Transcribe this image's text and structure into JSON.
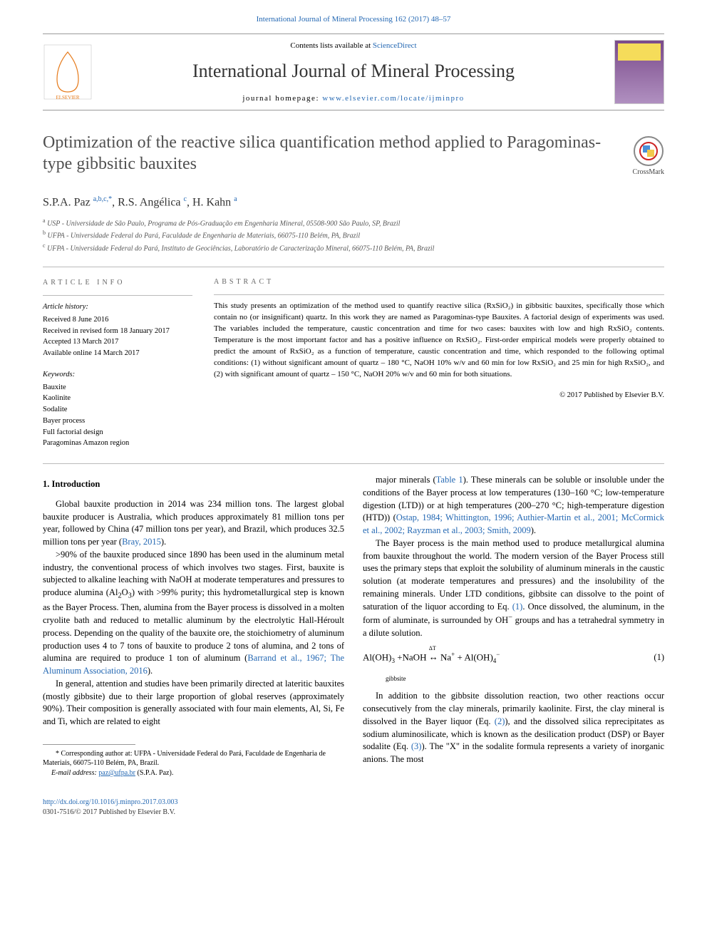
{
  "header": {
    "citation": "International Journal of Mineral Processing 162 (2017) 48–57",
    "contents_prefix": "Contents lists available at ",
    "contents_link": "ScienceDirect",
    "journal_name": "International Journal of Mineral Processing",
    "homepage_prefix": "journal homepage: ",
    "homepage_link": "www.elsevier.com/locate/ijminpro",
    "cover_title_line1": "MINERAL",
    "cover_title_line2": "PROCESSING"
  },
  "article": {
    "title": "Optimization of the reactive silica quantification method applied to Paragominas-type gibbsitic bauxites",
    "crossmark_label": "CrossMark",
    "authors_html": "S.P.A. Paz <sup>a,b,c,*</sup>, R.S. Angélica <sup>c</sup>, H. Kahn <sup>a</sup>",
    "affiliations": [
      {
        "sup": "a",
        "text": "USP - Universidade de São Paulo, Programa de Pós-Graduação em Engenharia Mineral, 05508-900 São Paulo, SP, Brazil"
      },
      {
        "sup": "b",
        "text": "UFPA - Universidade Federal do Pará, Faculdade de Engenharia de Materiais, 66075-110 Belém, PA, Brazil"
      },
      {
        "sup": "c",
        "text": "UFPA - Universidade Federal do Pará, Instituto de Geociências, Laboratório de Caracterização Mineral, 66075-110 Belém, PA, Brazil"
      }
    ]
  },
  "info": {
    "label": "article info",
    "history_label": "Article history:",
    "history": [
      "Received 8 June 2016",
      "Received in revised form 18 January 2017",
      "Accepted 13 March 2017",
      "Available online 14 March 2017"
    ],
    "keywords_label": "Keywords:",
    "keywords": [
      "Bauxite",
      "Kaolinite",
      "Sodalite",
      "Bayer process",
      "Full factorial design",
      "Paragominas Amazon region"
    ]
  },
  "abstract": {
    "label": "abstract",
    "body": "This study presents an optimization of the method used to quantify reactive silica (RxSiO₂) in gibbsitic bauxites, specifically those which contain no (or insignificant) quartz. In this work they are named as Paragominas-type Bauxites. A factorial design of experiments was used. The variables included the temperature, caustic concentration and time for two cases: bauxites with low and high RxSiO₂ contents. Temperature is the most important factor and has a positive influence on RxSiO₂. First-order empirical models were properly obtained to predict the amount of RxSiO₂ as a function of temperature, caustic concentration and time, which responded to the following optimal conditions: (1) without significant amount of quartz – 180 °C, NaOH 10% w/v and 60 min for low RxSiO₂ and 25 min for high RxSiO₂, and (2) with significant amount of quartz – 150 °C, NaOH 20% w/v and 60 min for both situations.",
    "copyright": "© 2017 Published by Elsevier B.V."
  },
  "sections": {
    "intro_heading": "1. Introduction",
    "left_paras": [
      "Global bauxite production in 2014 was 234 million tons. The largest global bauxite producer is Australia, which produces approximately 81 million tons per year, followed by China (47 million tons per year), and Brazil, which produces 32.5 million tons per year (Bray, 2015).",
      ">90% of the bauxite produced since 1890 has been used in the aluminum metal industry, the conventional process of which involves two stages. First, bauxite is subjected to alkaline leaching with NaOH at moderate temperatures and pressures to produce alumina (Al₂O₃) with >99% purity; this hydrometallurgical step is known as the Bayer Process. Then, alumina from the Bayer process is dissolved in a molten cryolite bath and reduced to metallic aluminum by the electrolytic Hall-Héroult process. Depending on the quality of the bauxite ore, the stoichiometry of aluminum production uses 4 to 7 tons of bauxite to produce 2 tons of alumina, and 2 tons of alumina are required to produce 1 ton of aluminum (Barrand et al., 1967; The Aluminum Association, 2016).",
      "In general, attention and studies have been primarily directed at lateritic bauxites (mostly gibbsite) due to their large proportion of global reserves (approximately 90%). Their composition is generally associated with four main elements, Al, Si, Fe and Ti, which are related to eight"
    ],
    "right_paras_a": [
      "major minerals (Table 1). These minerals can be soluble or insoluble under the conditions of the Bayer process at low temperatures (130–160 °C; low-temperature digestion (LTD)) or at high temperatures (200–270 °C; high-temperature digestion (HTD)) (Ostap, 1984; Whittington, 1996; Authier-Martin et al., 2001; McCormick et al., 2002; Rayzman et al., 2003; Smith, 2009).",
      "The Bayer process is the main method used to produce metallurgical alumina from bauxite throughout the world. The modern version of the Bayer Process still uses the primary steps that exploit the solubility of aluminum minerals in the caustic solution (at moderate temperatures and pressures) and the insolubility of the remaining minerals. Under LTD conditions, gibbsite can dissolve to the point of saturation of the liquor according to Eq. (1). Once dissolved, the aluminum, in the form of aluminate, is surrounded by OH⁻ groups and has a tetrahedral symmetry in a dilute solution."
    ],
    "equation": {
      "formula": "Al(OH)₃ + NaOH ⇌ Na⁺ + Al(OH)₄⁻",
      "sub_label": "gibbsite",
      "delta": "ΔT",
      "number": "(1)"
    },
    "right_paras_b": [
      "In addition to the gibbsite dissolution reaction, two other reactions occur consecutively from the clay minerals, primarily kaolinite. First, the clay mineral is dissolved in the Bayer liquor (Eq. (2)), and the dissolved silica reprecipitates as sodium aluminosilicate, which is known as the desilication product (DSP) or Bayer sodalite (Eq. (3)). The \"X\" in the sodalite formula represents a variety of inorganic anions. The most"
    ]
  },
  "footnotes": {
    "corresponding": "* Corresponding author at: UFPA - Universidade Federal do Pará, Faculdade de Engenharia de Materiais, 66075-110 Belém, PA, Brazil.",
    "email_label": "E-mail address: ",
    "email": "paz@ufpa.br",
    "email_who": " (S.P.A. Paz)."
  },
  "footer": {
    "doi": "http://dx.doi.org/10.1016/j.minpro.2017.03.003",
    "issn_line": "0301-7516/© 2017 Published by Elsevier B.V."
  },
  "link_refs": {
    "bray": "Bray, 2015",
    "barrand": "Barrand et al., 1967; The Aluminum Association, 2016",
    "table1": "Table 1",
    "ostap": "Ostap, 1984; Whittington, 1996; Authier-Martin et al., 2001; McCormick et al., 2002; Rayzman et al., 2003; Smith, 2009",
    "eq1": "(1)",
    "eq2": "(2)",
    "eq3": "(3)"
  },
  "colors": {
    "link": "#2468b3",
    "text": "#000000",
    "heading_gray": "#505050",
    "rule": "#999999"
  }
}
